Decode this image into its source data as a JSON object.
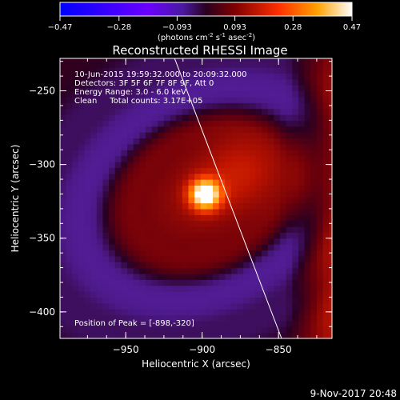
{
  "chart_data": {
    "type": "heatmap",
    "title": "Reconstructed RHESSI Image",
    "xlabel": "Heliocentric X (arcsec)",
    "ylabel": "Heliocentric Y (arcsec)",
    "xlim": [
      -993,
      -815
    ],
    "ylim": [
      -418,
      -228
    ],
    "x_ticks": [
      -950,
      -900,
      -850
    ],
    "y_ticks": [
      -250,
      -300,
      -350,
      -400
    ],
    "colorbar": {
      "ticks": [
        -0.47,
        -0.28,
        -0.093,
        0.093,
        0.28,
        0.47
      ],
      "tick_labels": [
        "-0.47",
        "-0.28",
        "-0.093",
        "0.093",
        "0.28",
        "0.47"
      ],
      "range": [
        -0.47,
        0.47
      ],
      "unit_parts": [
        "(photons cm",
        "-2",
        " s",
        "-1",
        " asec",
        "-2",
        ")"
      ]
    },
    "info_lines": [
      "10-Jun-2015 19:59:32.000 to 20:09:32.000",
      "Detectors: 3F 5F 6F 7F 8F 9F, Att 0",
      "Energy Range: 3.0 - 6.0 keV",
      "Clean     Total counts: 3.17E+05"
    ],
    "peak_label": "Position of Peak = [-898,-320]",
    "peak": {
      "x": -898,
      "y": -320,
      "value": 0.47
    },
    "limb_line": [
      [
        -918,
        -228
      ],
      [
        -848,
        -418
      ]
    ],
    "grid": false
  },
  "footer": {
    "timestamp": "9-Nov-2017 20:48"
  }
}
